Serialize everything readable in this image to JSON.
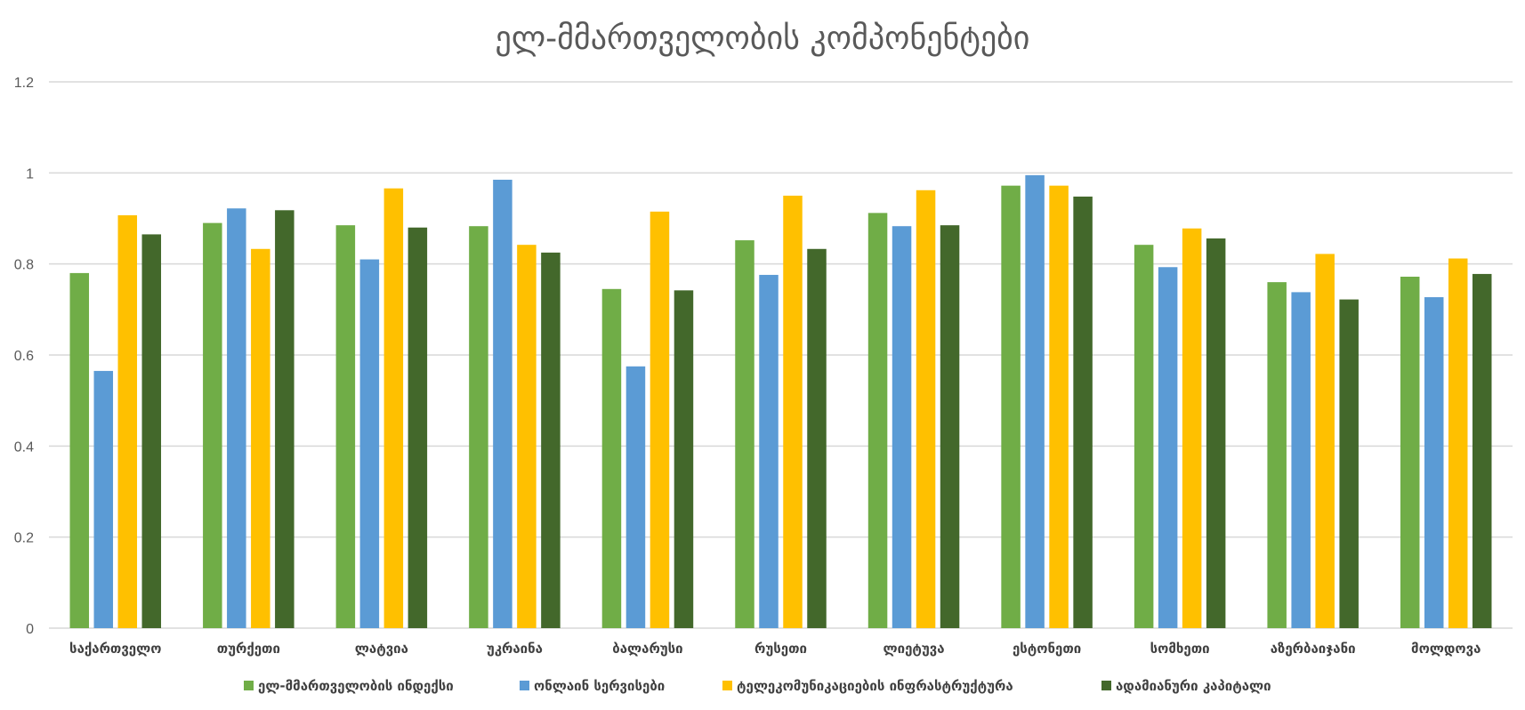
{
  "chart_data": {
    "type": "bar",
    "title": "ელ-მმართველობის კომპონენტები",
    "xlabel": "",
    "ylabel": "",
    "ylim": [
      0,
      1.2
    ],
    "yticks": [
      "0",
      "0.2",
      "0.4",
      "0.6",
      "0.8",
      "1",
      "1.2"
    ],
    "ytick_values": [
      0,
      0.2,
      0.4,
      0.6,
      0.8,
      1,
      1.2
    ],
    "grid": true,
    "legend_position": "bottom",
    "categories": [
      "საქართველო",
      "თურქეთი",
      "ლატვია",
      "უკრაინა",
      "ბალარუსი",
      "რუსეთი",
      "ლიეტუვა",
      "ესტონეთი",
      "სომხეთი",
      "აზერბაიჯანი",
      "მოლდოვა"
    ],
    "series": [
      {
        "name": "ელ-მმართველობის ინდექსი",
        "color": "#70ad47",
        "values": [
          0.78,
          0.89,
          0.885,
          0.883,
          0.745,
          0.852,
          0.912,
          0.972,
          0.842,
          0.76,
          0.772
        ]
      },
      {
        "name": "ონლაინ სერვისები",
        "color": "#5b9bd5",
        "values": [
          0.565,
          0.922,
          0.81,
          0.985,
          0.575,
          0.776,
          0.883,
          0.995,
          0.793,
          0.738,
          0.727
        ]
      },
      {
        "name": "ტელეკომუნიკაციების ინფრასტრუქტურა",
        "color": "#ffc000",
        "values": [
          0.907,
          0.833,
          0.966,
          0.842,
          0.915,
          0.95,
          0.962,
          0.972,
          0.878,
          0.822,
          0.812
        ]
      },
      {
        "name": "ადამიანური კაპიტალი",
        "color": "#43682b",
        "values": [
          0.865,
          0.918,
          0.88,
          0.825,
          0.742,
          0.833,
          0.885,
          0.948,
          0.856,
          0.722,
          0.778
        ]
      }
    ]
  }
}
